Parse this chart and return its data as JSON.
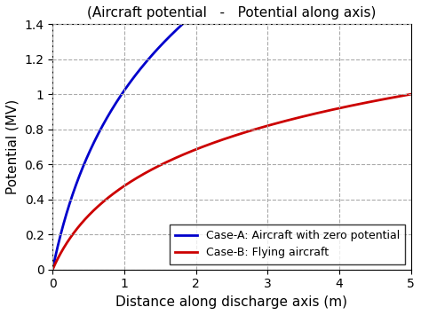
{
  "title": "(Aircraft potential   -   Potential along axis)",
  "xlabel": "Distance along discharge axis (m)",
  "ylabel": "Potential (MV)",
  "xlim": [
    0,
    5
  ],
  "ylim": [
    0,
    1.4
  ],
  "xticks": [
    0,
    1,
    2,
    3,
    4,
    5
  ],
  "yticks": [
    0,
    0.2,
    0.4,
    0.6,
    0.8,
    1.0,
    1.2,
    1.4
  ],
  "line_blue_color": "#0000cc",
  "line_red_color": "#cc0000",
  "line_width": 2.0,
  "legend_entries": [
    "Case-A: Aircraft with zero potential",
    "Case-B: Flying aircraft"
  ],
  "legend_loc": "lower right",
  "grid_color": "#aaaaaa",
  "grid_linestyle": "--",
  "background_color": "#ffffff",
  "title_fontsize": 11,
  "axis_label_fontsize": 11,
  "tick_fontsize": 10,
  "legend_fontsize": 9,
  "case_A_a": 0.835,
  "case_A_b": 2.4,
  "case_B_a": 0.39,
  "case_B_b": 2.4
}
